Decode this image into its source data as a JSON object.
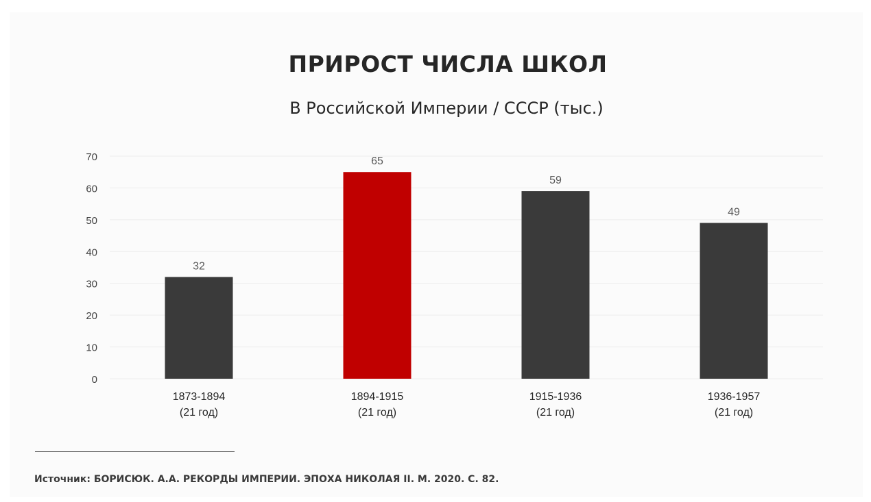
{
  "chart_data": {
    "type": "bar",
    "title": "ПРИРОСТ ЧИСЛА ШКОЛ",
    "subtitle": "В Российской Империи / СССР (тыс.)",
    "categories": [
      [
        "1873-1894",
        "(21 год)"
      ],
      [
        "1894-1915",
        "(21 год)"
      ],
      [
        "1915-1936",
        "(21 год)"
      ],
      [
        "1936-1957",
        "(21 год)"
      ]
    ],
    "values": [
      32,
      65,
      59,
      49
    ],
    "colors": [
      "#3a3a3a",
      "#c00000",
      "#3a3a3a",
      "#3a3a3a"
    ],
    "ylim": [
      0,
      70
    ],
    "yticks": [
      0,
      10,
      20,
      30,
      40,
      50,
      60,
      70
    ],
    "grid": true,
    "data_labels": true
  },
  "source": "Источник: БОРИСЮК. А.А. РЕКОРДЫ ИМПЕРИИ. ЭПОХА НИКОЛАЯ II. М. 2020. С. 82."
}
